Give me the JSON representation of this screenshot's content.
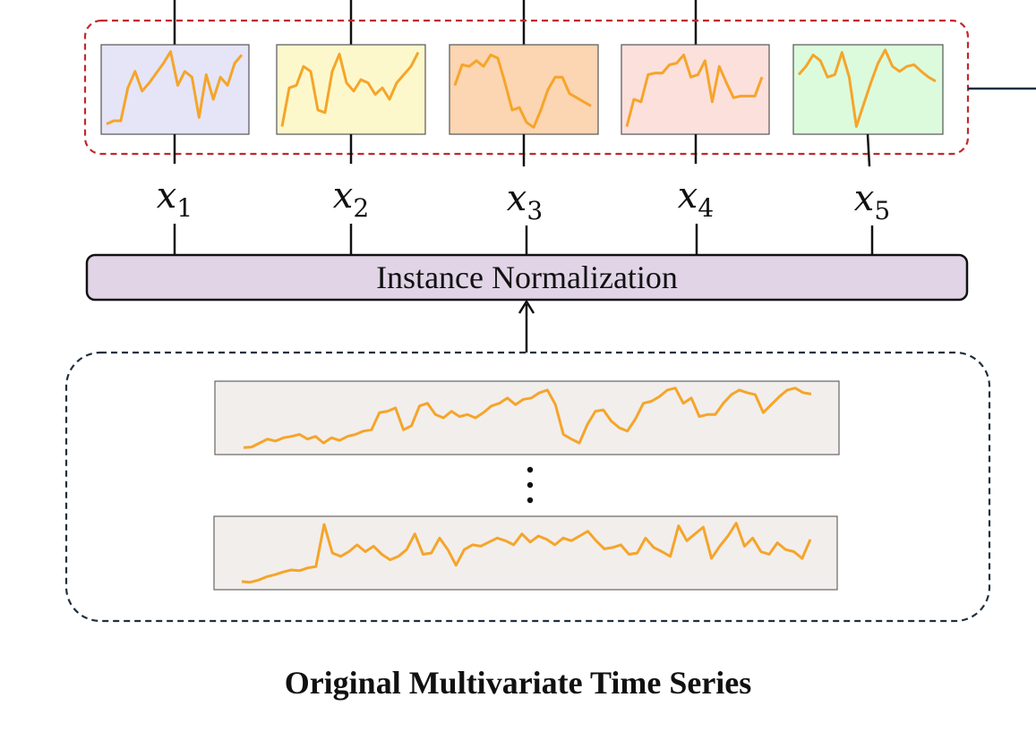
{
  "normalization": {
    "label": "Instance Normalization"
  },
  "caption": "Original Multivariate Time Series",
  "variables": [
    {
      "symbol": "x",
      "index": "1",
      "color": "#e5e5f7"
    },
    {
      "symbol": "x",
      "index": "2",
      "color": "#fdf8cb"
    },
    {
      "symbol": "x",
      "index": "3",
      "color": "#fcd5b2"
    },
    {
      "symbol": "x",
      "index": "4",
      "color": "#fce0dc"
    },
    {
      "symbol": "x",
      "index": "5",
      "color": "#dcfbdc"
    }
  ],
  "colors": {
    "series_line": "#f5a52a",
    "group_border": "#c0282c",
    "input_border": "#1f2f3f",
    "norm_fill": "#e0d4e6",
    "series_panel_fill": "#f2eeec"
  },
  "series_shapes": {
    "x1": [
      0.08,
      0.12,
      0.12,
      0.52,
      0.72,
      0.48,
      0.58,
      0.7,
      0.82,
      0.96,
      0.55,
      0.72,
      0.65,
      0.16,
      0.68,
      0.38,
      0.65,
      0.55,
      0.82,
      0.92
    ],
    "x2": [
      0.05,
      0.52,
      0.55,
      0.78,
      0.72,
      0.25,
      0.22,
      0.72,
      0.93,
      0.58,
      0.48,
      0.62,
      0.58,
      0.44,
      0.52,
      0.38,
      0.58,
      0.68,
      0.78,
      0.95
    ],
    "x3": [
      0.55,
      0.8,
      0.78,
      0.85,
      0.78,
      0.92,
      0.88,
      0.58,
      0.25,
      0.28,
      0.1,
      0.04,
      0.25,
      0.5,
      0.65,
      0.65,
      0.45,
      0.4,
      0.35,
      0.3
    ],
    "x4": [
      0.05,
      0.38,
      0.35,
      0.68,
      0.7,
      0.7,
      0.8,
      0.82,
      0.92,
      0.65,
      0.68,
      0.85,
      0.35,
      0.78,
      0.58,
      0.4,
      0.42,
      0.42,
      0.42,
      0.65
    ],
    "x5": [
      0.68,
      0.78,
      0.92,
      0.85,
      0.65,
      0.68,
      0.95,
      0.65,
      0.05,
      0.32,
      0.58,
      0.82,
      0.98,
      0.78,
      0.72,
      0.78,
      0.8,
      0.72,
      0.65,
      0.6
    ],
    "series_a": [
      0.05,
      0.06,
      0.12,
      0.18,
      0.15,
      0.2,
      0.22,
      0.25,
      0.18,
      0.22,
      0.12,
      0.2,
      0.16,
      0.22,
      0.25,
      0.3,
      0.32,
      0.58,
      0.6,
      0.65,
      0.32,
      0.38,
      0.68,
      0.72,
      0.55,
      0.5,
      0.6,
      0.52,
      0.55,
      0.5,
      0.58,
      0.68,
      0.72,
      0.8,
      0.7,
      0.78,
      0.8,
      0.88,
      0.92,
      0.7,
      0.25,
      0.18,
      0.12,
      0.4,
      0.6,
      0.62,
      0.45,
      0.35,
      0.3,
      0.48,
      0.72,
      0.75,
      0.82,
      0.92,
      0.95,
      0.72,
      0.8,
      0.52,
      0.55,
      0.55,
      0.72,
      0.85,
      0.92,
      0.88,
      0.85,
      0.58,
      0.7,
      0.82,
      0.92,
      0.95,
      0.88,
      0.86
    ],
    "series_b": [
      0.08,
      0.07,
      0.1,
      0.15,
      0.18,
      0.22,
      0.25,
      0.24,
      0.28,
      0.3,
      0.92,
      0.5,
      0.45,
      0.52,
      0.62,
      0.52,
      0.6,
      0.48,
      0.4,
      0.45,
      0.55,
      0.78,
      0.48,
      0.5,
      0.72,
      0.55,
      0.32,
      0.55,
      0.62,
      0.6,
      0.66,
      0.72,
      0.68,
      0.62,
      0.78,
      0.66,
      0.75,
      0.7,
      0.62,
      0.72,
      0.68,
      0.75,
      0.82,
      0.68,
      0.56,
      0.58,
      0.62,
      0.48,
      0.5,
      0.72,
      0.58,
      0.52,
      0.45,
      0.9,
      0.68,
      0.78,
      0.88,
      0.42,
      0.6,
      0.75,
      0.94,
      0.6,
      0.72,
      0.52,
      0.48,
      0.65,
      0.55,
      0.52,
      0.42,
      0.7
    ]
  }
}
